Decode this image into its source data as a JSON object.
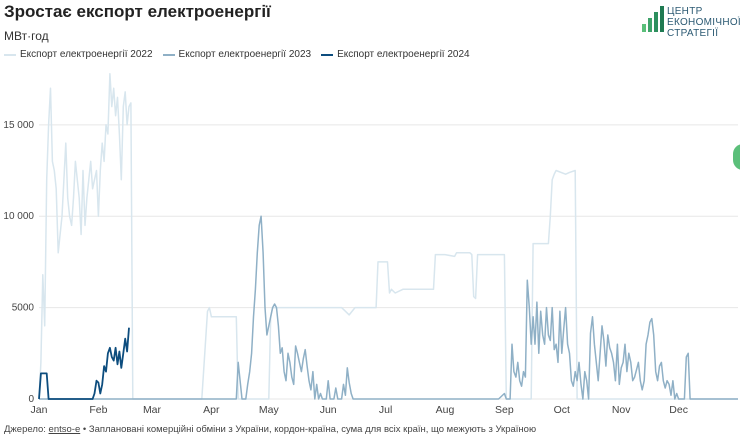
{
  "title": "Зростає експорт електроенергії",
  "subtitle": "МВт·год",
  "logo": {
    "line1": "ЦЕНТР",
    "line2": "ЕКОНОМІЧНОЇ",
    "line3": "СТРАТЕГІЇ"
  },
  "footer": {
    "prefix": "Джерело:",
    "source": "entso-e",
    "rest": "• Заплановані комерційні обміни з України, кордон-країна, сума для всіх країн, що межують з Україною"
  },
  "colors": {
    "s2022": "#d8e6ee",
    "s2023": "#8fb0c6",
    "s2024": "#0d4d7e",
    "grid": "#e7e7e7"
  },
  "chart_data": {
    "type": "line",
    "x_unit": "day of year",
    "xlim": [
      0,
      365
    ],
    "ylim": [
      0,
      18000
    ],
    "yticks": [
      0,
      5000,
      10000,
      15000
    ],
    "ytick_labels": [
      "0",
      "5000",
      "10 000",
      "15 000"
    ],
    "xticks": [
      0,
      31,
      59,
      90,
      120,
      151,
      181,
      212,
      243,
      273,
      304,
      334
    ],
    "xtick_labels": [
      "Jan",
      "Feb",
      "Mar",
      "Apr",
      "May",
      "Jun",
      "Jul",
      "Aug",
      "Sep",
      "Oct",
      "Nov",
      "Dec"
    ],
    "series": [
      {
        "name": "Експорт електроенергії 2022",
        "color": "#d8e6ee",
        "points": [
          [
            0,
            0
          ],
          [
            1,
            2000
          ],
          [
            2,
            6800
          ],
          [
            3,
            4000
          ],
          [
            4,
            12000
          ],
          [
            5,
            15000
          ],
          [
            6,
            17000
          ],
          [
            7,
            13000
          ],
          [
            8,
            12500
          ],
          [
            9,
            11500
          ],
          [
            10,
            8000
          ],
          [
            11,
            9000
          ],
          [
            12,
            10000
          ],
          [
            13,
            12000
          ],
          [
            14,
            14000
          ],
          [
            15,
            11000
          ],
          [
            16,
            10000
          ],
          [
            17,
            9500
          ],
          [
            18,
            11000
          ],
          [
            19,
            13000
          ],
          [
            20,
            12000
          ],
          [
            21,
            11000
          ],
          [
            22,
            9000
          ],
          [
            23,
            12500
          ],
          [
            24,
            9500
          ],
          [
            25,
            11000
          ],
          [
            26,
            12000
          ],
          [
            27,
            13000
          ],
          [
            28,
            11500
          ],
          [
            29,
            12000
          ],
          [
            30,
            12500
          ],
          [
            31,
            10000
          ],
          [
            32,
            12500
          ],
          [
            33,
            14000
          ],
          [
            34,
            13000
          ],
          [
            35,
            15000
          ],
          [
            36,
            14500
          ],
          [
            37,
            17800
          ],
          [
            38,
            16000
          ],
          [
            39,
            17000
          ],
          [
            40,
            15500
          ],
          [
            41,
            16500
          ],
          [
            42,
            14500
          ],
          [
            43,
            12000
          ],
          [
            44,
            16000
          ],
          [
            45,
            16800
          ],
          [
            46,
            15000
          ],
          [
            47,
            16000
          ],
          [
            48,
            16200
          ],
          [
            49,
            0
          ],
          [
            55,
            0
          ],
          [
            60,
            0
          ],
          [
            70,
            0
          ],
          [
            85,
            0
          ],
          [
            88,
            4800
          ],
          [
            89,
            5000
          ],
          [
            90,
            4500
          ],
          [
            100,
            4500
          ],
          [
            103,
            4500
          ],
          [
            104,
            0
          ],
          [
            115,
            0
          ],
          [
            120,
            0
          ],
          [
            121,
            4500
          ],
          [
            122,
            5000
          ],
          [
            150,
            5000
          ],
          [
            158,
            5000
          ],
          [
            162,
            4600
          ],
          [
            165,
            5000
          ],
          [
            176,
            5000
          ],
          [
            177,
            7500
          ],
          [
            180,
            7500
          ],
          [
            182,
            7500
          ],
          [
            183,
            5800
          ],
          [
            184,
            6000
          ],
          [
            186,
            5800
          ],
          [
            190,
            6000
          ],
          [
            205,
            6000
          ],
          [
            206,
            6000
          ],
          [
            207,
            7900
          ],
          [
            212,
            7900
          ],
          [
            217,
            7800
          ],
          [
            218,
            8000
          ],
          [
            225,
            8000
          ],
          [
            226,
            7900
          ],
          [
            227,
            5600
          ],
          [
            228,
            5500
          ],
          [
            229,
            7900
          ],
          [
            243,
            7900
          ],
          [
            244,
            0
          ],
          [
            245,
            0
          ],
          [
            246,
            0
          ],
          [
            257,
            0
          ],
          [
            258,
            8500
          ],
          [
            266,
            8500
          ],
          [
            267,
            10000
          ],
          [
            268,
            12000
          ],
          [
            269,
            12300
          ],
          [
            270,
            12500
          ],
          [
            275,
            12300
          ],
          [
            277,
            12400
          ],
          [
            280,
            12500
          ],
          [
            281,
            0
          ],
          [
            300,
            0
          ],
          [
            320,
            0
          ],
          [
            340,
            0
          ],
          [
            365,
            0
          ]
        ]
      },
      {
        "name": "Експорт електроенергії 2023",
        "color": "#8fb0c6",
        "points": [
          [
            0,
            0
          ],
          [
            95,
            0
          ],
          [
            100,
            0
          ],
          [
            103,
            0
          ],
          [
            104,
            2000
          ],
          [
            105,
            1000
          ],
          [
            106,
            0
          ],
          [
            108,
            0
          ],
          [
            109,
            800
          ],
          [
            110,
            1500
          ],
          [
            111,
            2500
          ],
          [
            112,
            4500
          ],
          [
            113,
            6000
          ],
          [
            114,
            8000
          ],
          [
            115,
            9500
          ],
          [
            116,
            10000
          ],
          [
            117,
            8000
          ],
          [
            118,
            5000
          ],
          [
            119,
            3500
          ],
          [
            120,
            4000
          ],
          [
            121,
            4500
          ],
          [
            122,
            5000
          ],
          [
            123,
            5200
          ],
          [
            124,
            5000
          ],
          [
            125,
            4000
          ],
          [
            126,
            2500
          ],
          [
            127,
            2800
          ],
          [
            128,
            1500
          ],
          [
            129,
            1000
          ],
          [
            130,
            2500
          ],
          [
            131,
            2000
          ],
          [
            132,
            1200
          ],
          [
            133,
            800
          ],
          [
            134,
            2900
          ],
          [
            135,
            2500
          ],
          [
            136,
            2000
          ],
          [
            137,
            1500
          ],
          [
            138,
            2200
          ],
          [
            139,
            2700
          ],
          [
            140,
            1800
          ],
          [
            141,
            1000
          ],
          [
            142,
            500
          ],
          [
            143,
            1500
          ],
          [
            144,
            0
          ],
          [
            145,
            800
          ],
          [
            146,
            0
          ],
          [
            147,
            300
          ],
          [
            148,
            0
          ],
          [
            150,
            0
          ],
          [
            151,
            1000
          ],
          [
            152,
            0
          ],
          [
            154,
            0
          ],
          [
            155,
            600
          ],
          [
            156,
            0
          ],
          [
            158,
            0
          ],
          [
            159,
            800
          ],
          [
            160,
            200
          ],
          [
            161,
            1700
          ],
          [
            162,
            900
          ],
          [
            163,
            300
          ],
          [
            164,
            0
          ],
          [
            200,
            0
          ],
          [
            225,
            0
          ],
          [
            240,
            0
          ],
          [
            243,
            300
          ],
          [
            244,
            0
          ],
          [
            246,
            0
          ],
          [
            247,
            3000
          ],
          [
            248,
            1500
          ],
          [
            249,
            1200
          ],
          [
            250,
            2000
          ],
          [
            251,
            1000
          ],
          [
            252,
            700
          ],
          [
            253,
            1500
          ],
          [
            254,
            1200
          ],
          [
            255,
            6500
          ],
          [
            256,
            5000
          ],
          [
            257,
            3000
          ],
          [
            258,
            4500
          ],
          [
            259,
            3000
          ],
          [
            260,
            5300
          ],
          [
            261,
            2500
          ],
          [
            262,
            4800
          ],
          [
            263,
            3500
          ],
          [
            264,
            3000
          ],
          [
            265,
            5000
          ],
          [
            266,
            3500
          ],
          [
            267,
            3200
          ],
          [
            268,
            5000
          ],
          [
            269,
            2700
          ],
          [
            270,
            3000
          ],
          [
            271,
            2000
          ],
          [
            272,
            4800
          ],
          [
            273,
            2500
          ],
          [
            274,
            3800
          ],
          [
            275,
            5000
          ],
          [
            276,
            3000
          ],
          [
            277,
            2500
          ],
          [
            278,
            1000
          ],
          [
            279,
            700
          ],
          [
            280,
            1500
          ],
          [
            281,
            1000
          ],
          [
            282,
            2000
          ],
          [
            283,
            800
          ],
          [
            284,
            0
          ],
          [
            285,
            1500
          ],
          [
            286,
            1000
          ],
          [
            287,
            0
          ],
          [
            288,
            3600
          ],
          [
            289,
            4500
          ],
          [
            290,
            3000
          ],
          [
            291,
            2000
          ],
          [
            292,
            1000
          ],
          [
            293,
            2500
          ],
          [
            294,
            4000
          ],
          [
            295,
            3200
          ],
          [
            296,
            1800
          ],
          [
            297,
            3500
          ],
          [
            298,
            2800
          ],
          [
            299,
            2500
          ],
          [
            300,
            2000
          ],
          [
            301,
            1000
          ],
          [
            302,
            3000
          ],
          [
            303,
            800
          ],
          [
            304,
            1700
          ],
          [
            305,
            2000
          ],
          [
            306,
            3000
          ],
          [
            307,
            1500
          ],
          [
            308,
            2500
          ],
          [
            309,
            2000
          ],
          [
            310,
            1000
          ],
          [
            311,
            1200
          ],
          [
            312,
            1600
          ],
          [
            313,
            2000
          ],
          [
            314,
            1000
          ],
          [
            315,
            500
          ],
          [
            316,
            1000
          ],
          [
            317,
            3000
          ],
          [
            318,
            3500
          ],
          [
            319,
            4200
          ],
          [
            320,
            4400
          ],
          [
            321,
            3500
          ],
          [
            322,
            1500
          ],
          [
            323,
            1000
          ],
          [
            324,
            1800
          ],
          [
            325,
            2000
          ],
          [
            326,
            1000
          ],
          [
            327,
            600
          ],
          [
            328,
            1000
          ],
          [
            329,
            800
          ],
          [
            330,
            200
          ],
          [
            331,
            1000
          ],
          [
            332,
            0
          ],
          [
            333,
            300
          ],
          [
            334,
            0
          ],
          [
            337,
            0
          ],
          [
            338,
            2300
          ],
          [
            339,
            2500
          ],
          [
            340,
            0
          ],
          [
            365,
            0
          ]
        ]
      },
      {
        "name": "Експорт електроенергії 2024",
        "color": "#0d4d7e",
        "points": [
          [
            0,
            0
          ],
          [
            1,
            1400
          ],
          [
            2,
            1400
          ],
          [
            3,
            1400
          ],
          [
            4,
            1400
          ],
          [
            5,
            0
          ],
          [
            20,
            0
          ],
          [
            25,
            0
          ],
          [
            28,
            0
          ],
          [
            29,
            300
          ],
          [
            30,
            1000
          ],
          [
            31,
            900
          ],
          [
            32,
            300
          ],
          [
            33,
            800
          ],
          [
            34,
            1800
          ],
          [
            35,
            1500
          ],
          [
            36,
            2500
          ],
          [
            37,
            2800
          ],
          [
            38,
            2300
          ],
          [
            39,
            2100
          ],
          [
            40,
            2800
          ],
          [
            41,
            1900
          ],
          [
            42,
            2600
          ],
          [
            43,
            1700
          ],
          [
            44,
            2500
          ],
          [
            45,
            3300
          ],
          [
            46,
            2600
          ],
          [
            47,
            3900
          ]
        ]
      }
    ]
  }
}
